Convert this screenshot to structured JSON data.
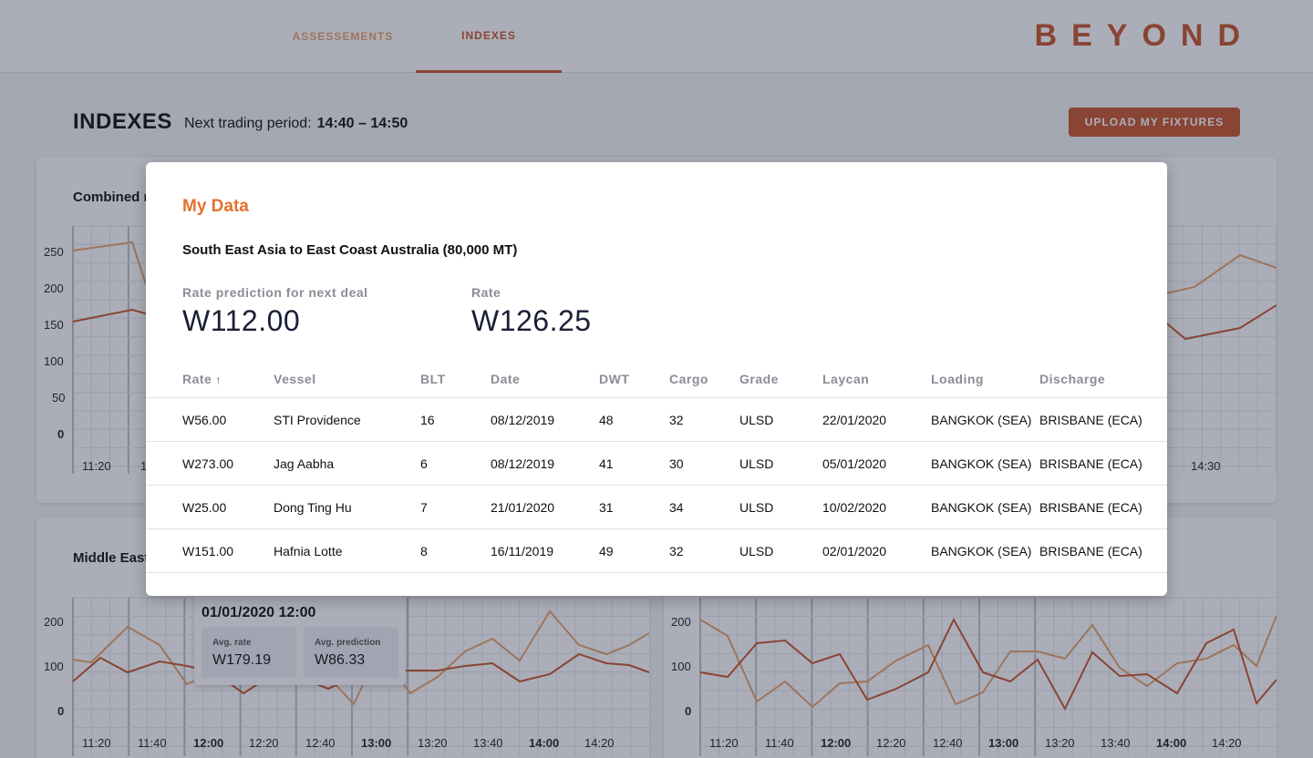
{
  "nav": {
    "tabs": [
      {
        "label": "ASSESSEMENTS"
      },
      {
        "label": "INDEXES"
      }
    ],
    "logo": "BEYOND"
  },
  "header": {
    "title": "INDEXES",
    "trading_label": "Next trading period:",
    "trading_value": "14:40 – 14:50",
    "upload_label": "UPLOAD MY FIXTURES"
  },
  "card1": {
    "title": "Combined r",
    "y_ticks": [
      "250",
      "200",
      "150",
      "100",
      "50",
      "0"
    ],
    "x_ticks_left": [
      "11:20",
      "1"
    ],
    "x_ticks_right": [
      "14:30"
    ]
  },
  "card2": {
    "title": "Middle East",
    "y_ticks": [
      "200",
      "100",
      "0"
    ],
    "x_ticks": [
      "11:20",
      "11:40",
      "12:00",
      "12:20",
      "12:40",
      "13:00",
      "13:20",
      "13:40",
      "14:00",
      "14:20"
    ]
  },
  "card3": {
    "y_ticks": [
      "200",
      "100",
      "0"
    ],
    "x_ticks": [
      "11:20",
      "11:40",
      "12:00",
      "12:20",
      "12:40",
      "13:00",
      "13:20",
      "13:40",
      "14:00",
      "14:20"
    ]
  },
  "tooltip": {
    "date": "01/01/2020 12:00",
    "avg_rate_label": "Avg. rate",
    "avg_rate_value": "W179.19",
    "avg_pred_label": "Avg. prediction",
    "avg_pred_value": "W86.33"
  },
  "modal": {
    "title": "My Data",
    "route": "South East Asia to East Coast Australia (80,000 MT)",
    "prediction_label": "Rate prediction for next deal",
    "prediction_value": "W112.00",
    "rate_label": "Rate",
    "rate_value": "W126.25",
    "columns": [
      "Rate",
      "Vessel",
      "BLT",
      "Date",
      "DWT",
      "Cargo",
      "Grade",
      "Laycan",
      "Loading",
      "Discharge"
    ],
    "rows": [
      [
        "W56.00",
        "STI Providence",
        "16",
        "08/12/2019",
        "48",
        "32",
        "ULSD",
        "22/01/2020",
        "BANGKOK (SEA)",
        "BRISBANE (ECA)"
      ],
      [
        "W273.00",
        "Jag Aabha",
        "6",
        "08/12/2019",
        "41",
        "30",
        "ULSD",
        "05/01/2020",
        "BANGKOK (SEA)",
        "BRISBANE (ECA)"
      ],
      [
        "W25.00",
        "Dong Ting Hu",
        "7",
        "21/01/2020",
        "31",
        "34",
        "ULSD",
        "10/02/2020",
        "BANGKOK (SEA)",
        "BRISBANE (ECA)"
      ],
      [
        "W151.00",
        "Hafnia Lotte",
        "8",
        "16/11/2019",
        "49",
        "32",
        "ULSD",
        "02/01/2020",
        "BANGKOK (SEA)",
        "BRISBANE (ECA)"
      ]
    ]
  },
  "colors": {
    "accent": "#c8552a",
    "accent_light": "#e9a36a",
    "title_orange": "#e2712f"
  }
}
